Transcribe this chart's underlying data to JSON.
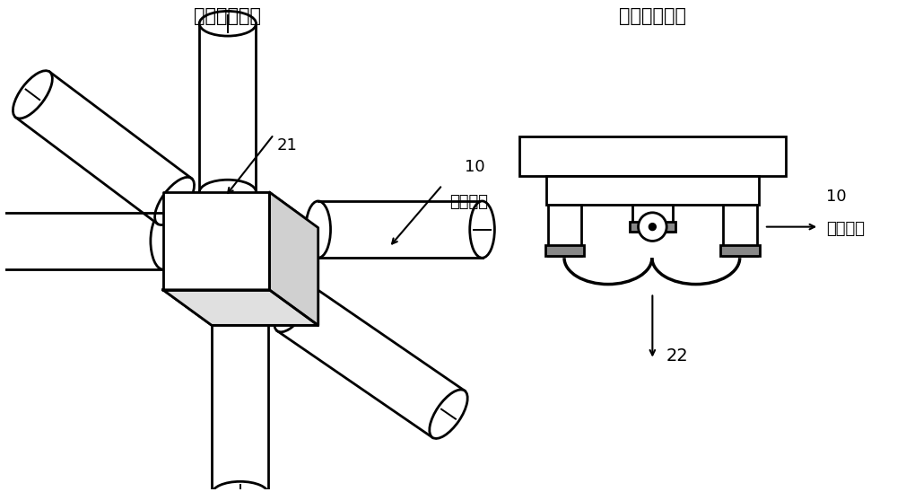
{
  "bg_color": "#ffffff",
  "line_color": "#000000",
  "gray_fill": "#888888",
  "label_21": "21",
  "label_10_left": "10",
  "label_sensor_left": "传感探头",
  "label_vector": "矢量封装结构",
  "label_scalar": "标量封装结构",
  "label_22": "22",
  "label_10_right": "10",
  "label_sensor_right": "传感探头"
}
